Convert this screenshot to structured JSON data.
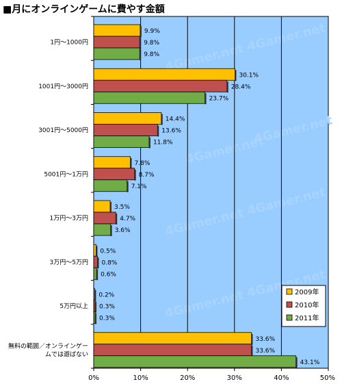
{
  "chart_data": {
    "type": "bar",
    "orientation": "horizontal",
    "title": "■月にオンラインゲームに費やす金額",
    "categories": [
      "1円～1000円",
      "1001円～3000円",
      "3001円～5000円",
      "5001円～1万円",
      "1万円～3万円",
      "3万円～5万円",
      "5万円以上",
      "無料の範囲／オンラインゲームでは遊ばない"
    ],
    "category_lines": [
      [
        "1円～1000円"
      ],
      [
        "1001円～3000円"
      ],
      [
        "3001円～5000円"
      ],
      [
        "5001円～1万円"
      ],
      [
        "1万円～3万円"
      ],
      [
        "3万円～5万円"
      ],
      [
        "5万円以上"
      ],
      [
        "無料の範囲／オンラインゲー",
        "ムでは遊ばない"
      ]
    ],
    "series": [
      {
        "name": "2009年",
        "color": "#ffc000",
        "values": [
          9.9,
          30.1,
          14.4,
          7.8,
          3.5,
          0.5,
          0.2,
          33.6
        ],
        "labels": [
          "9.9%",
          "30.1%",
          "14.4%",
          "7.8%",
          "3.5%",
          "0.5%",
          "0.2%",
          "33.6%"
        ]
      },
      {
        "name": "2010年",
        "color": "#c0504d",
        "values": [
          9.8,
          28.4,
          13.6,
          8.7,
          4.7,
          0.8,
          0.3,
          33.6
        ],
        "labels": [
          "9.8%",
          "28.4%",
          "13.6%",
          "8.7%",
          "4.7%",
          "0.8%",
          "0.3%",
          "33.6%"
        ]
      },
      {
        "name": "2011年",
        "color": "#70ad47",
        "values": [
          9.8,
          23.7,
          11.8,
          7.1,
          3.6,
          0.6,
          0.3,
          43.1
        ],
        "labels": [
          "9.8%",
          "23.7%",
          "11.8%",
          "7.1%",
          "3.6%",
          "0.6%",
          "0.3%",
          "43.1%"
        ]
      }
    ],
    "x_ticks": [
      0,
      10,
      20,
      30,
      40,
      50
    ],
    "x_tick_labels": [
      "0%",
      "10%",
      "20%",
      "30%",
      "40%",
      "50%"
    ],
    "xlim": [
      0,
      50
    ],
    "grid": true,
    "legend_position": "bottom-right",
    "plot_background": "#99ccff",
    "watermark": "4Gamer.net"
  }
}
